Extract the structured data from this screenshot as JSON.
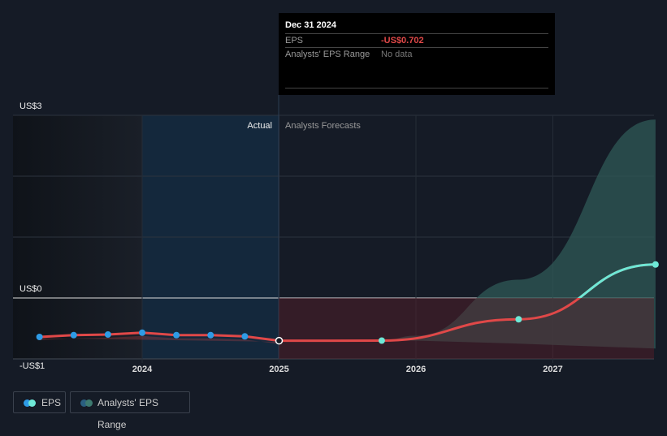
{
  "tooltip": {
    "date": "Dec 31 2024",
    "eps_label": "EPS",
    "eps_value": "-US$0.702",
    "range_label": "Analysts' EPS Range",
    "range_value": "No data"
  },
  "labels": {
    "actual": "Actual",
    "forecast": "Analysts Forecasts"
  },
  "legend": {
    "eps": "EPS",
    "range": "Analysts' EPS Range"
  },
  "colors": {
    "bg": "#151b26",
    "eps_actual": "#2e9be6",
    "eps_forecast": "#6ee8d6",
    "line_neg": "#e04848",
    "range": "#3d7a70"
  },
  "chart_data": {
    "type": "line",
    "title": "",
    "xlabel": "",
    "ylabel": "",
    "ylim": [
      -1,
      3
    ],
    "xlim": [
      2023.1,
      2027.75
    ],
    "y_ticks": [
      {
        "v": 3,
        "label": "US$3"
      },
      {
        "v": 0,
        "label": "US$0"
      },
      {
        "v": -1,
        "label": "-US$1"
      }
    ],
    "x_ticks": [
      {
        "v": 2024,
        "label": "2024"
      },
      {
        "v": 2025,
        "label": "2025"
      },
      {
        "v": 2026,
        "label": "2026"
      },
      {
        "v": 2027,
        "label": "2027"
      }
    ],
    "actual": {
      "x": [
        2023.25,
        2023.5,
        2023.75,
        2024.0,
        2024.25,
        2024.5,
        2024.75,
        2025.0
      ],
      "y": [
        -0.64,
        -0.61,
        -0.6,
        -0.57,
        -0.61,
        -0.61,
        -0.63,
        -0.702
      ]
    },
    "forecast": {
      "x": [
        2025.0,
        2025.75,
        2026.75,
        2027.75
      ],
      "y": [
        -0.702,
        -0.7,
        -0.35,
        0.55
      ]
    },
    "range": {
      "x": [
        2025.0,
        2025.75,
        2026.0,
        2026.75,
        2027.75
      ],
      "low": [
        -0.702,
        -0.7,
        -0.7,
        -0.75,
        -0.83
      ],
      "high": [
        -0.702,
        -0.7,
        -0.62,
        0.3,
        2.93
      ]
    }
  }
}
